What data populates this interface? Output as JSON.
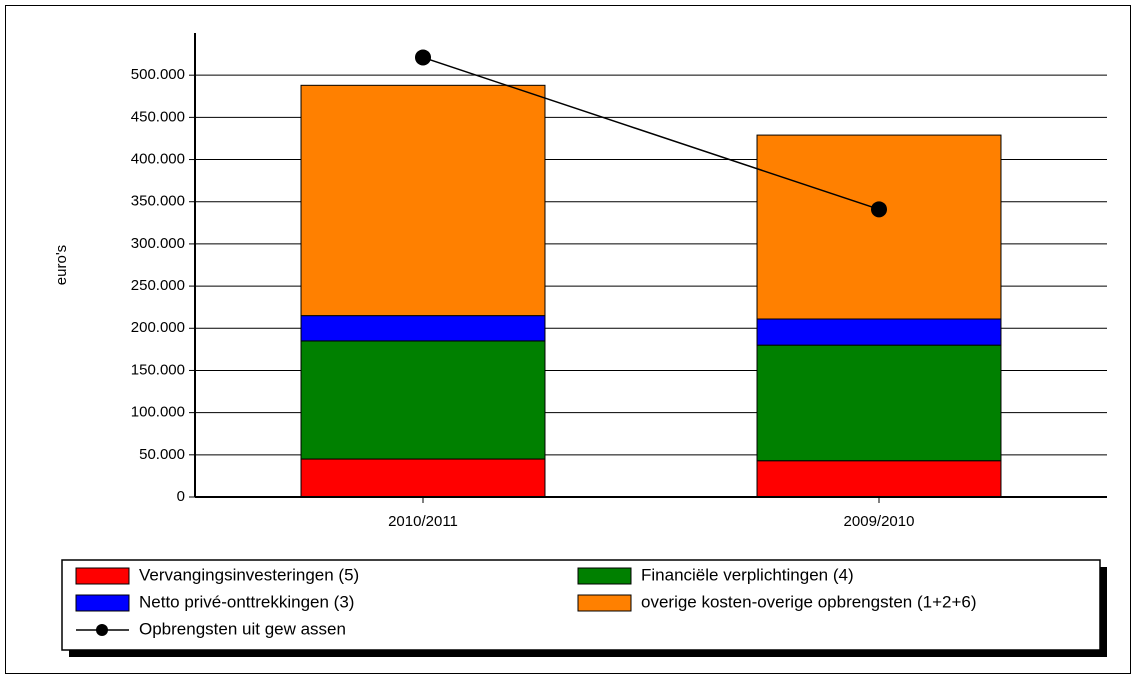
{
  "chart_data": {
    "type": "bar",
    "stacked": true,
    "y_label": "euro's",
    "categories": [
      "2010/2011",
      "2009/2010"
    ],
    "series": [
      {
        "name": "Vervangingsinvesteringen (5)",
        "color": "#ff0000",
        "values": [
          45000,
          43000
        ]
      },
      {
        "name": "Financiële verplichtingen (4)",
        "color": "#008000",
        "values": [
          140000,
          137000
        ]
      },
      {
        "name": "Netto privé-onttrekkingen (3)",
        "color": "#0000ff",
        "values": [
          30000,
          31000
        ]
      },
      {
        "name": "overige kosten-overige opbrengsten (1+2+6)",
        "color": "#ff8000",
        "values": [
          273000,
          218000
        ]
      },
      {
        "name": "Opbrengsten uit gew assen",
        "color": "#000000",
        "type": "line",
        "values": [
          521000,
          341000
        ]
      }
    ],
    "ylim": [
      0,
      550000
    ],
    "yticks": [
      0,
      {
        "value": 50000,
        "label": "50.000"
      },
      {
        "value": 100000,
        "label": "100.000"
      },
      {
        "value": 150000,
        "label": "150.000"
      },
      {
        "value": 200000,
        "label": "200.000"
      },
      {
        "value": 250000,
        "label": "250.000"
      },
      {
        "value": 300000,
        "label": "300.000"
      },
      {
        "value": 350000,
        "label": "350.000"
      },
      {
        "value": 400000,
        "label": "400.000"
      },
      {
        "value": 450000,
        "label": "450.000"
      },
      {
        "value": 500000,
        "label": "500.000"
      }
    ],
    "grid": true
  }
}
